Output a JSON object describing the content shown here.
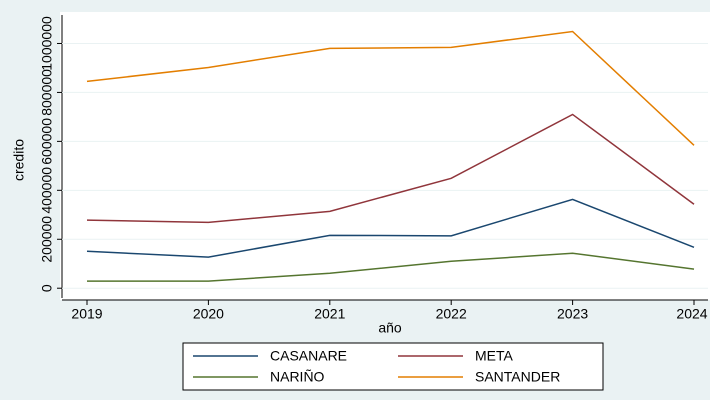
{
  "chart_data": {
    "type": "line",
    "x_label": "año",
    "y_label": "credito",
    "x": [
      2019,
      2020,
      2021,
      2022,
      2023,
      2024
    ],
    "series": [
      {
        "name": "CASANARE",
        "color": "#1a476f",
        "values": [
          151000,
          127000,
          216000,
          214000,
          363000,
          167000
        ]
      },
      {
        "name": "META",
        "color": "#90353b",
        "values": [
          278000,
          269000,
          314000,
          449000,
          710000,
          343000
        ]
      },
      {
        "name": "NARIÑO",
        "color": "#55752f",
        "values": [
          29000,
          29000,
          61000,
          110000,
          143000,
          78000
        ]
      },
      {
        "name": "SANTANDER",
        "color": "#e37e00",
        "values": [
          845000,
          902000,
          980000,
          984000,
          1049000,
          584000
        ]
      }
    ],
    "xlim": [
      2019,
      2024
    ],
    "xticks": [
      2019,
      2020,
      2021,
      2022,
      2023,
      2024
    ],
    "ylim": [
      -40000,
      1100000
    ],
    "yticks": [
      0,
      200000,
      400000,
      600000,
      800000,
      1000000
    ],
    "grid": true,
    "legend": "bottom"
  }
}
